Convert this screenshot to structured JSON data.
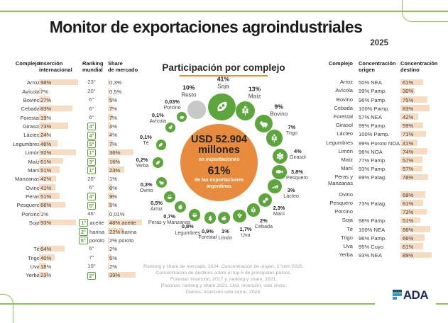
{
  "header": {
    "title": "Monitor de exportaciones agroindustriales",
    "year": "2025"
  },
  "colors": {
    "green": "#5ca63c",
    "green_line": "#8cc152",
    "orange": "#e98b3c",
    "peach": "#f8dcc1",
    "gray_circle": "#c8c8c8",
    "navy": "#202b66",
    "blue": "#2e9bd5",
    "teal": "#1a5a66"
  },
  "chart_data": [
    {
      "type": "pie",
      "title": "Participación por complejo",
      "unit": "%",
      "legend_position": "around-donut",
      "center_text": {
        "line1": "USD 52.904",
        "line2": "millones",
        "line3": "en exportaciones",
        "line4": "61%",
        "line5": "de las exportaciones argentinas"
      },
      "items": [
        {
          "label": "Soja",
          "value": 41,
          "display": "41%",
          "angle": 3,
          "color": "green",
          "icon": "soja"
        },
        {
          "label": "Maíz",
          "value": 13,
          "display": "13%",
          "angle": 27,
          "color": "green",
          "icon": "maiz"
        },
        {
          "label": "Bovino",
          "value": 9,
          "display": "9%",
          "angle": 49,
          "color": "green",
          "icon": "bovino"
        },
        {
          "label": "Trigo",
          "value": 7,
          "display": "7%",
          "angle": 66,
          "color": "green",
          "icon": "trigo"
        },
        {
          "label": "Girasol",
          "value": 4,
          "display": "4%",
          "angle": 84,
          "color": "green",
          "icon": "girasol"
        },
        {
          "label": "Pesquero",
          "value": 3.8,
          "display": "3,8%",
          "angle": 99,
          "color": "green",
          "icon": "pesquero"
        },
        {
          "label": "Lácteo",
          "value": 3,
          "display": "3%",
          "angle": 113,
          "color": "green",
          "icon": "lacteo"
        },
        {
          "label": "Maní",
          "value": 2.3,
          "display": "2,3%",
          "angle": 129,
          "color": "green",
          "icon": "mani"
        },
        {
          "label": "Cebada",
          "value": 2,
          "display": "2%",
          "angle": 144,
          "color": "green",
          "icon": "cebada"
        },
        {
          "label": "Uva",
          "value": 1.7,
          "display": "1,7%",
          "angle": 159,
          "color": "green",
          "icon": "uva"
        },
        {
          "label": "Limón",
          "value": 1,
          "display": "1%",
          "angle": 175,
          "color": "green",
          "icon": "limon"
        },
        {
          "label": "Forestal",
          "value": 0.9,
          "display": "0,9%",
          "angle": 189,
          "color": "green",
          "icon": "forestal"
        },
        {
          "label": "Legumbres",
          "value": 0.8,
          "display": "0,8%",
          "angle": 205,
          "color": "green",
          "icon": "legumbres"
        },
        {
          "label": "Peras y Manzanas",
          "value": 0.7,
          "display": "0,7%",
          "angle": 221,
          "color": "green",
          "icon": "peras-manzanas"
        },
        {
          "label": "Arroz",
          "value": 0.5,
          "display": "0,5%",
          "angle": 235,
          "color": "green",
          "icon": "arroz"
        },
        {
          "label": "Ovino",
          "value": 0.3,
          "display": "0,3%",
          "angle": 251,
          "color": "green",
          "icon": "ovino"
        },
        {
          "label": "Yerba",
          "value": 0.2,
          "display": "0,2%",
          "angle": 270,
          "color": "green",
          "icon": "yerba"
        },
        {
          "label": "Té",
          "value": 0.1,
          "display": "0,1%",
          "angle": 287,
          "color": "green",
          "icon": "te"
        },
        {
          "label": "Avícola",
          "value": 0.1,
          "display": "0,1%",
          "angle": 306,
          "color": "green",
          "icon": "avicola"
        },
        {
          "label": "Porcino",
          "value": 0.03,
          "display": "0,03%",
          "angle": 321,
          "color": "green",
          "icon": "porcino"
        },
        {
          "label": "Resto",
          "value": 10,
          "display": "10%",
          "angle": 337,
          "color": "gray",
          "icon": "resto"
        }
      ]
    },
    {
      "type": "table",
      "position": "left",
      "headers": [
        "Complejo",
        "Inserción\ninternacional",
        "Ranking\nmundial",
        "Share\nde mercado"
      ],
      "rows": [
        {
          "name": "Arroz",
          "insercion": {
            "label": "98%",
            "value": 98
          },
          "ranking": [
            {
              "ord": "23°",
              "highlight": false,
              "note": ""
            }
          ],
          "share": [
            {
              "label": "0,3%",
              "value": 0.3
            }
          ],
          "rowspan": 1
        },
        {
          "name": "Avícola",
          "insercion": {
            "label": "7%",
            "value": 7
          },
          "ranking": [
            {
              "ord": "20°",
              "highlight": false,
              "note": ""
            }
          ],
          "share": [
            {
              "label": "0,5%",
              "value": 0.5
            }
          ],
          "rowspan": 1
        },
        {
          "name": "Bovino",
          "insercion": {
            "label": "27%",
            "value": 27
          },
          "ranking": [
            {
              "ord": "6°",
              "highlight": false,
              "note": ""
            }
          ],
          "share": [
            {
              "label": "5%",
              "value": 5
            }
          ],
          "rowspan": 1
        },
        {
          "name": "Cebada",
          "insercion": {
            "label": "83%",
            "value": 83
          },
          "ranking": [
            {
              "ord": "6°",
              "highlight": false,
              "note": ""
            }
          ],
          "share": [
            {
              "label": "7%",
              "value": 7
            }
          ],
          "rowspan": 1
        },
        {
          "name": "Forestal",
          "insercion": {
            "label": "19%",
            "value": 19
          },
          "ranking": [
            {
              "ord": "6°",
              "highlight": false,
              "note": ""
            }
          ],
          "share": [
            {
              "label": "7%",
              "value": 7
            }
          ],
          "rowspan": 1
        },
        {
          "name": "Girasol",
          "insercion": {
            "label": "73%",
            "value": 73
          },
          "ranking": [
            {
              "ord": "4°",
              "highlight": true,
              "note": ""
            }
          ],
          "share": [
            {
              "label": "4%",
              "value": 4
            }
          ],
          "rowspan": 1
        },
        {
          "name": "Lácteo",
          "insercion": {
            "label": "24%",
            "value": 24
          },
          "ranking": [
            {
              "ord": "4°",
              "highlight": true,
              "note": ""
            }
          ],
          "share": [
            {
              "label": "4%",
              "value": 4
            }
          ],
          "rowspan": 1
        },
        {
          "name": "Legumbres",
          "insercion": {
            "label": "46%",
            "value": 46
          },
          "ranking": [
            {
              "ord": "5°",
              "highlight": true,
              "note": ""
            }
          ],
          "share": [
            {
              "label": "7%",
              "value": 7
            }
          ],
          "rowspan": 1
        },
        {
          "name": "Limón",
          "insercion": {
            "label": "92%",
            "value": 92
          },
          "ranking": [
            {
              "ord": "1°",
              "highlight": true,
              "note": ""
            }
          ],
          "share": [
            {
              "label": "36%",
              "value": 36
            }
          ],
          "rowspan": 1
        },
        {
          "name": "Maíz",
          "insercion": {
            "label": "61%",
            "value": 61
          },
          "ranking": [
            {
              "ord": "3°",
              "highlight": true,
              "note": ""
            }
          ],
          "share": [
            {
              "label": "16%",
              "value": 16
            }
          ],
          "rowspan": 1
        },
        {
          "name": "Maní",
          "insercion": {
            "label": "51%",
            "value": 51
          },
          "ranking": [
            {
              "ord": "1°",
              "highlight": true,
              "note": ""
            }
          ],
          "share": [
            {
              "label": "23%",
              "value": 23
            }
          ],
          "rowspan": 1
        },
        {
          "name": "Manzanas",
          "insercion": {
            "label": "42%",
            "value": 42
          },
          "ranking": [
            {
              "ord": "20°",
              "highlight": false,
              "note": ""
            }
          ],
          "share": [
            {
              "label": "1%",
              "value": 1
            }
          ],
          "rowspan": 1
        },
        {
          "name": "Ovino",
          "insercion": {
            "label": "41%",
            "value": 41
          },
          "ranking": [
            {
              "ord": "6°",
              "highlight": false,
              "note": ""
            }
          ],
          "share": [
            {
              "label": "6%",
              "value": 6
            }
          ],
          "rowspan": 1
        },
        {
          "name": "Peras",
          "insercion": {
            "label": "51%",
            "value": 51
          },
          "ranking": [
            {
              "ord": "4°",
              "highlight": true,
              "note": ""
            }
          ],
          "share": [
            {
              "label": "9%",
              "value": 9
            }
          ],
          "rowspan": 1
        },
        {
          "name": "Pesquero",
          "insercion": {
            "label": "66%",
            "value": 66
          },
          "ranking": [
            {
              "ord": "5°",
              "highlight": true,
              "note": ""
            }
          ],
          "share": [
            {
              "label": "5%",
              "value": 5
            }
          ],
          "rowspan": 1
        },
        {
          "name": "Porcino",
          "insercion": {
            "label": "1%",
            "value": 1
          },
          "ranking": [
            {
              "ord": "46°",
              "highlight": false,
              "note": ""
            }
          ],
          "share": [
            {
              "label": "0,01%",
              "value": 0.01
            }
          ],
          "rowspan": 1
        },
        {
          "name": "Soja",
          "insercion": {
            "label": "93%",
            "value": 93
          },
          "ranking": [
            {
              "ord": "1°",
              "highlight": true,
              "note": "aceite"
            },
            {
              "ord": "2°",
              "highlight": true,
              "note": "harina"
            },
            {
              "ord": "5°",
              "highlight": true,
              "note": "poroto"
            }
          ],
          "share": [
            {
              "label": "48% aceite",
              "value": 48
            },
            {
              "label": "22% harina",
              "value": 22
            },
            {
              "label": "2% poroto",
              "value": 2
            }
          ],
          "rowspan": 3
        },
        {
          "name": "Té",
          "insercion": {
            "label": "64%",
            "value": 64
          },
          "ranking": [
            {
              "ord": "6°",
              "highlight": false,
              "note": ""
            }
          ],
          "share": [
            {
              "label": "2%",
              "value": 2
            }
          ],
          "rowspan": 1
        },
        {
          "name": "Trigo",
          "insercion": {
            "label": "40%",
            "value": 40
          },
          "ranking": [
            {
              "ord": "7°",
              "highlight": false,
              "note": ""
            }
          ],
          "share": [
            {
              "label": "5%",
              "value": 5
            }
          ],
          "rowspan": 1
        },
        {
          "name": "Uva",
          "insercion": {
            "label": "18%",
            "value": 18
          },
          "ranking": [
            {
              "ord": "10°",
              "highlight": false,
              "note": ""
            }
          ],
          "share": [
            {
              "label": "2%",
              "value": 2
            }
          ],
          "rowspan": 1
        },
        {
          "name": "Yerba",
          "insercion": {
            "label": "23%",
            "value": 23
          },
          "ranking": [
            {
              "ord": "2°",
              "highlight": true,
              "note": ""
            }
          ],
          "share": [
            {
              "label": "39%",
              "value": 39
            }
          ],
          "rowspan": 1
        }
      ]
    },
    {
      "type": "table",
      "position": "right",
      "headers": [
        "Complejo",
        "Concentración\norigen",
        "Concentración\ndestino"
      ],
      "rows": [
        {
          "name": "Arroz",
          "origen": "50% NEA",
          "destino": {
            "label": "61%",
            "value": 61
          },
          "rowspan": 1
        },
        {
          "name": "Avícola",
          "origen": "99% Pamp.",
          "destino": {
            "label": "30%",
            "value": 30
          },
          "rowspan": 1
        },
        {
          "name": "Bovino",
          "origen": "96% Pamp.",
          "destino": {
            "label": "75%",
            "value": 75
          },
          "rowspan": 1
        },
        {
          "name": "Cebada",
          "origen": "100% Pamp.",
          "destino": {
            "label": "83%",
            "value": 83
          },
          "rowspan": 1
        },
        {
          "name": "Forestal",
          "origen": "57% NEA",
          "destino": {
            "label": "42%",
            "value": 42
          },
          "rowspan": 1
        },
        {
          "name": "Girasol",
          "origen": "99% Pamp.",
          "destino": {
            "label": "59%",
            "value": 59
          },
          "rowspan": 1
        },
        {
          "name": "Lácteo",
          "origen": "100% Pamp.",
          "destino": {
            "label": "71%",
            "value": 71
          },
          "rowspan": 1
        },
        {
          "name": "Legumbres",
          "origen": "99% Poroto NOA",
          "destino": {
            "label": "41%",
            "value": 41
          },
          "rowspan": 1
        },
        {
          "name": "Limón",
          "origen": "96% NOA",
          "destino": {
            "label": "74%",
            "value": 74
          },
          "rowspan": 1
        },
        {
          "name": "Maíz",
          "origen": "77% Pamp.",
          "destino": {
            "label": "57%",
            "value": 57
          },
          "rowspan": 1
        },
        {
          "name": "Maní",
          "origen": "93% Pamp.",
          "destino": {
            "label": "57%",
            "value": 57
          },
          "rowspan": 1
        },
        {
          "name": "Peras y Manzanas",
          "origen": "89% Patag.",
          "destino": {
            "label": "78%",
            "value": 78
          },
          "rowspan": 2
        },
        {
          "name": "Ovino",
          "origen": "",
          "destino": {
            "label": "68%",
            "value": 68
          },
          "rowspan": 1
        },
        {
          "name": "Pesquero",
          "origen": "73% Patag.",
          "destino": {
            "label": "61%",
            "value": 61
          },
          "rowspan": 1
        },
        {
          "name": "Porcino",
          "origen": "",
          "destino": {
            "label": "73%",
            "value": 73
          },
          "rowspan": 1
        },
        {
          "name": "Soja",
          "origen": "98% Pamp.",
          "destino": {
            "label": "51%",
            "value": 51
          },
          "rowspan": 1
        },
        {
          "name": "Té",
          "origen": "100% NEA",
          "destino": {
            "label": "86%",
            "value": 86
          },
          "rowspan": 1
        },
        {
          "name": "Trigo",
          "origen": "96% Pamp.",
          "destino": {
            "label": "66%",
            "value": 66
          },
          "rowspan": 1
        },
        {
          "name": "Uva",
          "origen": "95% Cuyo",
          "destino": {
            "label": "61%",
            "value": 61
          },
          "rowspan": 1
        },
        {
          "name": "Yerba",
          "origen": "93% NEA",
          "destino": {
            "label": "89%",
            "value": 89
          },
          "rowspan": 1
        }
      ]
    }
  ],
  "footnote": "Ranking y share de mercado, 2024. Concentración de origen, 1°sem 2025.\nConcentración de destinos sobre el top 5 de principales países.\nForestal: inserción, 2017 y, ranking y share, 2021.\nPorcinos: ranking y share 2021. Uva: inserción, solo vinos.\nOvinos: inserción solo carne, 2024.",
  "logo": {
    "name": "FADA",
    "letters": "ADA"
  }
}
